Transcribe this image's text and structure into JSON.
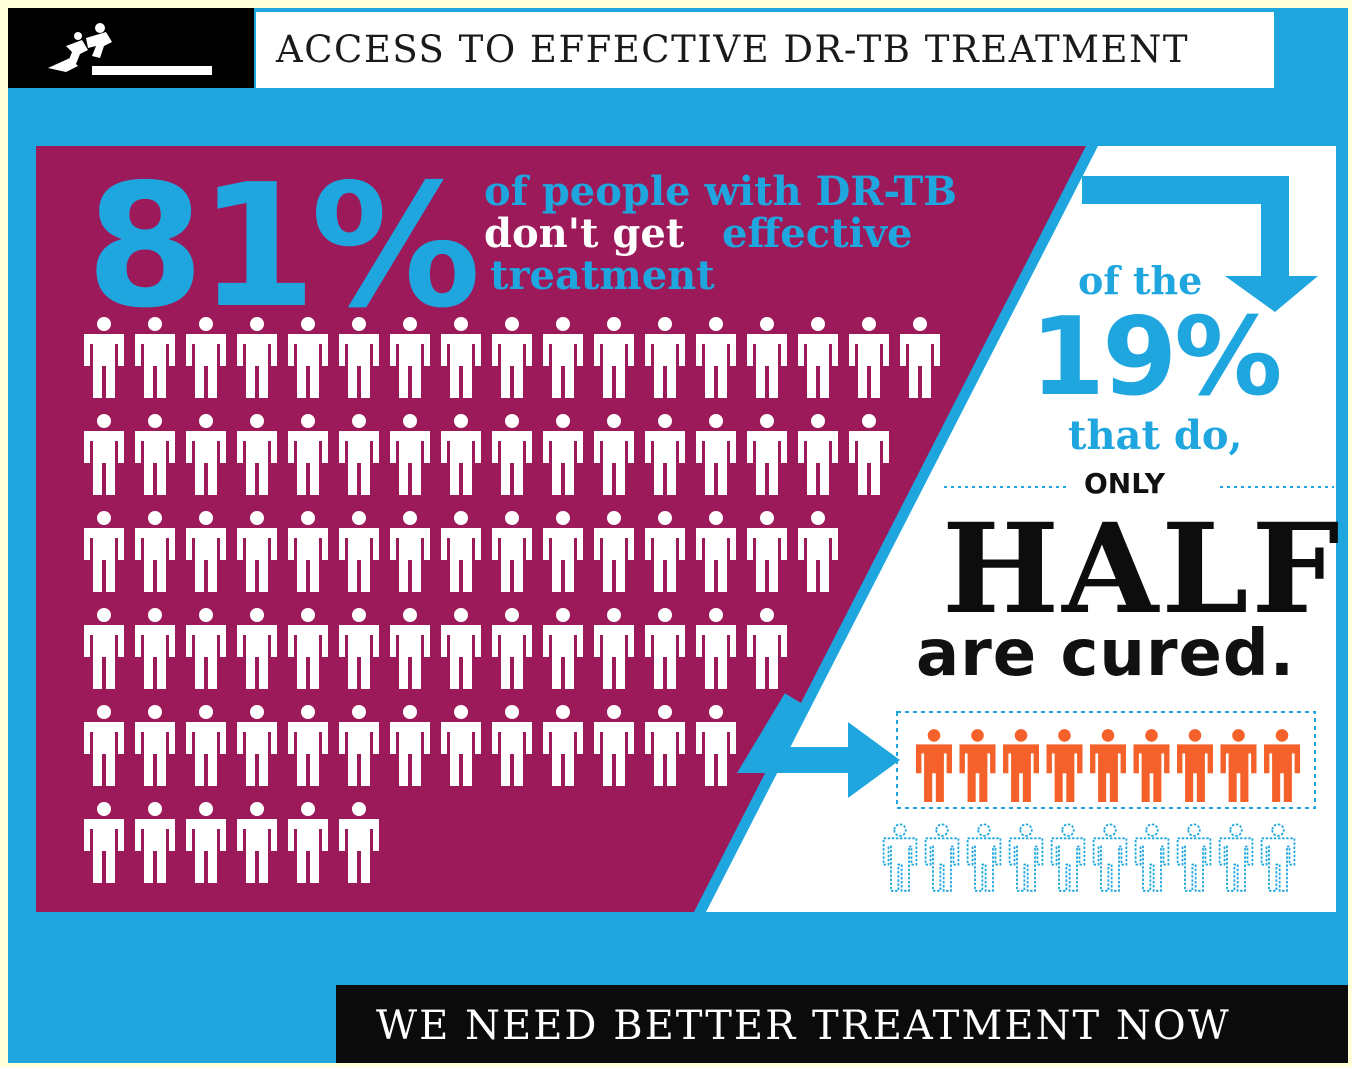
{
  "header": {
    "title": "ACCESS TO EFFECTIVE DR-TB TREATMENT"
  },
  "logo": {
    "icon": "msf-running-figures-logo"
  },
  "left_stat": {
    "percent": "81%",
    "line1": "of people with DR-TB",
    "line2_white": "don't get",
    "line2_blue": "effective",
    "line3": "treatment",
    "icons_per_row": [
      17,
      16,
      15,
      14,
      13,
      6
    ],
    "total_icons": 81
  },
  "right_stat": {
    "of_the": "of the",
    "percent": "19%",
    "that_do": "that do,",
    "only": "ONLY",
    "half": "HALF",
    "are_cured": "are cured.",
    "cured_icons": 9,
    "not_cured_icons": 10
  },
  "footer": {
    "text": "WE NEED BETTER TREATMENT NOW"
  },
  "colors": {
    "blue": "#1fa6df",
    "magenta": "#9c1a5a",
    "orange": "#f4612a",
    "black": "#0b0b0b",
    "white": "#ffffff"
  }
}
